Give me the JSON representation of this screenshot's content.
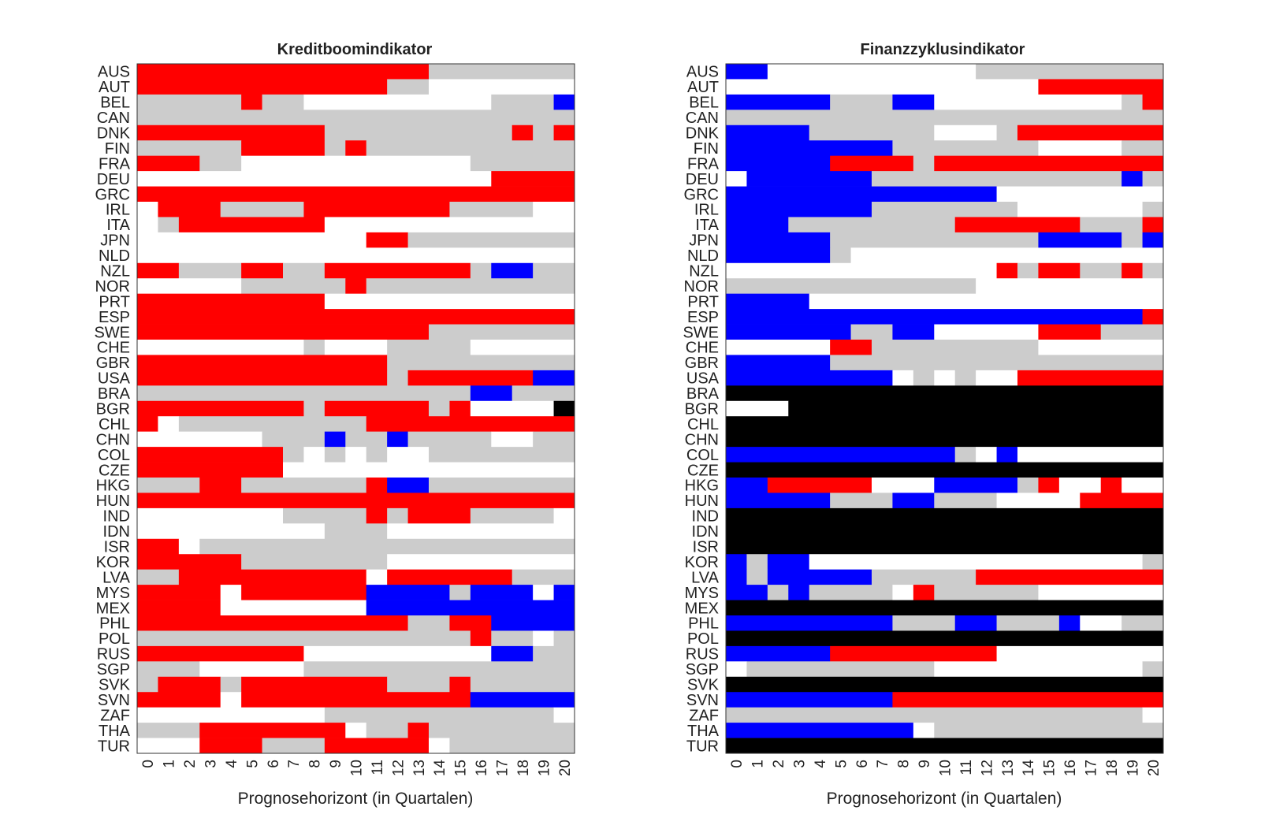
{
  "colors": {
    "R": "#ff0000",
    "G": "#cccccc",
    "W": "#ffffff",
    "B": "#0000ff",
    "K": "#000000"
  },
  "chart_data": [
    {
      "type": "heatmap",
      "title": "Kreditboomindikator",
      "xlabel": "Prognosehorizont (in Quartalen)",
      "x": [
        0,
        1,
        2,
        3,
        4,
        5,
        6,
        7,
        8,
        9,
        10,
        11,
        12,
        13,
        14,
        15,
        16,
        17,
        18,
        19,
        20
      ],
      "countries": [
        "AUS",
        "AUT",
        "BEL",
        "CAN",
        "DNK",
        "FIN",
        "FRA",
        "DEU",
        "GRC",
        "IRL",
        "ITA",
        "JPN",
        "NLD",
        "NZL",
        "NOR",
        "PRT",
        "ESP",
        "SWE",
        "CHE",
        "GBR",
        "USA",
        "BRA",
        "BGR",
        "CHL",
        "CHN",
        "COL",
        "CZE",
        "HKG",
        "HUN",
        "IND",
        "IDN",
        "ISR",
        "KOR",
        "LVA",
        "MYS",
        "MEX",
        "PHL",
        "POL",
        "RUS",
        "SGP",
        "SVK",
        "SVN",
        "ZAF",
        "THA",
        "TUR"
      ],
      "legend": {
        "R": "red",
        "G": "gray",
        "W": "white",
        "B": "blue",
        "K": "black"
      },
      "rows": [
        "RRRRRRRRRRRRRRGGGGGGG",
        "RRRRRRRRRRRRGGWWWWWWW",
        "GGGGGRGGWWWWWWWWWGGGB",
        "GGGGGGGGGGGGGGGGGGGGG",
        "RRRRRRRRRGGGGGGGGGRGR",
        "GGGGGRRRRGRGGGGGGGGGG",
        "RRRGGWWWWWWWWWWWGGGGG",
        "WWWWWWWWWWWWWWWWWRRRR",
        "RRRRRRRRRRRRRRRRRRRRR",
        "WRRRGGGGRRRRRRRGGGGWW",
        "WGRRRRRRRWWWWWWWWWWWW",
        "WWWWWWWWWWWRRGGGGGGGG",
        "WWWWWWWWWWWWWWWWWWWWW",
        "RRGGGRRGGRRRRRRRGBBGG",
        "WWWWWGGGGGRGGGGGGGGGG",
        "RRRRRRRRRWWWWWWWWWWWW",
        "RRRRRRRRRRRRRRRRRRRRR",
        "RRRRRRRRRRRRRRGGGGGGG",
        "WWWWWWWWGWWWGGGGWWWWW",
        "RRRRRRRRRRRRGGGGGGGGG",
        "RRRRRRRRRRRRGRRRRRRBB",
        "GGGGGGGGGGGGGGGGBBGGG",
        "RRRRRRRRGRRRRRGRWWWWK",
        "RWGGGGGGGGGRRRRRRRRRR",
        "WWWWWWGGGBGGBGGGGWWGG",
        "RRRRRRRGWGWGWWGGGGGGG",
        "RRRRRRRWWWWWWWWWWWWWW",
        "GGGRRGGGGGGRBBGGGGGGG",
        "RRRRRRRRRRRRRRRRRRRRR",
        "WWWWWWWGGGGRGRRRGGGGW",
        "WWWWWWWWWGGGWWWWWWWWW",
        "RRWGGGGGGGGGGGGGGGGGG",
        "RRRRRGGGGGGGWWWWWWWWW",
        "GGRRRRRRRRRWRRRRRRGGG",
        "RRRRWRRRRRRBBBBGBBBWB",
        "RRRRWWWWWWWBBBBBBBBBB",
        "RRRRRRRRRRRRRGGRRBBBB",
        "GGGGGGGGGGGGGGGGRGGWG",
        "RRRRRRRRWWWWWWWWWBBGG",
        "GGGWWWWWGGGGGGGGGGGGG",
        "GRRRGRRRRRRRGGGRGGGGG",
        "RRRRWRRRRRRRRRRRBBBBB",
        "WWWWWWWWWGGGGGGGGGGGW",
        "GGGRRRRRRRWGGRGGGGGGG",
        "WWWRRRGGGRRRRRWGGGGGG"
      ]
    },
    {
      "type": "heatmap",
      "title": "Finanzzyklusindikator",
      "xlabel": "Prognosehorizont (in Quartalen)",
      "x": [
        0,
        1,
        2,
        3,
        4,
        5,
        6,
        7,
        8,
        9,
        10,
        11,
        12,
        13,
        14,
        15,
        16,
        17,
        18,
        19,
        20
      ],
      "countries": [
        "AUS",
        "AUT",
        "BEL",
        "CAN",
        "DNK",
        "FIN",
        "FRA",
        "DEU",
        "GRC",
        "IRL",
        "ITA",
        "JPN",
        "NLD",
        "NZL",
        "NOR",
        "PRT",
        "ESP",
        "SWE",
        "CHE",
        "GBR",
        "USA",
        "BRA",
        "BGR",
        "CHL",
        "CHN",
        "COL",
        "CZE",
        "HKG",
        "HUN",
        "IND",
        "IDN",
        "ISR",
        "KOR",
        "LVA",
        "MYS",
        "MEX",
        "PHL",
        "POL",
        "RUS",
        "SGP",
        "SVK",
        "SVN",
        "ZAF",
        "THA",
        "TUR"
      ],
      "legend": {
        "R": "red",
        "G": "gray",
        "W": "white",
        "B": "blue",
        "K": "black"
      },
      "rows": [
        "BBWWWWWWWWWWGGGGGGGGG",
        "WWWWWWWWWWWWWWWRRRRRR",
        "BBBBBGGGBBWWWWWWWWWGR",
        "GGGGGGGGGGGGGGGGGGGGG",
        "BBBBGGGGGGWWWGRRRRRRR",
        "BBBBBBBBGGGGGGGWWWWGG",
        "BBBBBRRRRGRRRRRRRRRRR",
        "WBBBBBBGGGGGGGGGGGGBG",
        "BBBBBBBBBBBBBWWWWWWWW",
        "BBBBBBBGGGGGGGWWWWWWG",
        "BBBGGGGGGGGRRRRRRGGGR",
        "BBBBBGGGGGGGGGGBBBBGB",
        "BBBBBGWWWWWWWWWWWWWWW",
        "WWWWWWWWWWWWWRGRRGGRG",
        "GGGGGGGGGGGGWWWWWWWWW",
        "BBBBWWWWWWWWWWWWWWWWW",
        "BBBBBBBBBBBBBBBBBBBBR",
        "BBBBBBGGBBWWWWWRRRGGG",
        "WWWWWRRGGGGGGGGWWWWWW",
        "BBBBBGGGGGGGGGGGGGGGG",
        "BBBBBBBBWGWGWWRRRRRRR",
        "KKKKKKKKKKKKKKKKKKKKK",
        "WWWKKKKKKKKKKKKKKKKKK",
        "KKKKKKKKKKKKKKKKKKKKK",
        "KKKKKKKKKKKKKKKKKKKKK",
        "BBBBBBBBBBBGWBWWWWWWW",
        "KKKKKKKKKKKKKKKKKKKKK",
        "BBRRRRRWWWBBBBGRWWRWW",
        "BBBBBGGGBBGGGWWWWRRRR",
        "KKKKKKKKKKKKKKKKKKKKK",
        "KKKKKKKKKKKKKKKKKKKKK",
        "KKKKKKKKKKKKKKKKKKKKK",
        "BGBBWWWWWWWWWWWWWWWWG",
        "BGBBBBBGGGGGRRRRRRRRR",
        "BBGBGGGGWRGGGGGWWWWWW",
        "KKKKKKKKKKKKKKKKKKKKK",
        "BBBBBBBBGGGBBGGGBWWGG",
        "KKKKKKKKKKKKKKKKKKKKK",
        "BBBBBRRRRRRRRWWWWWWWW",
        "WGGGGGGGGGWWWWWWWWWWG",
        "KKKKKKKKKKKKKKKKKKKKK",
        "BBBBBBBBRRRRRRRRRRRRR",
        "GGGGGGGGGGGGGGGGGGGGW",
        "BBBBBBBBBWGGGGGGGGGGG",
        "KKKKKKKKKKKKKKKKKKKKK"
      ]
    }
  ]
}
